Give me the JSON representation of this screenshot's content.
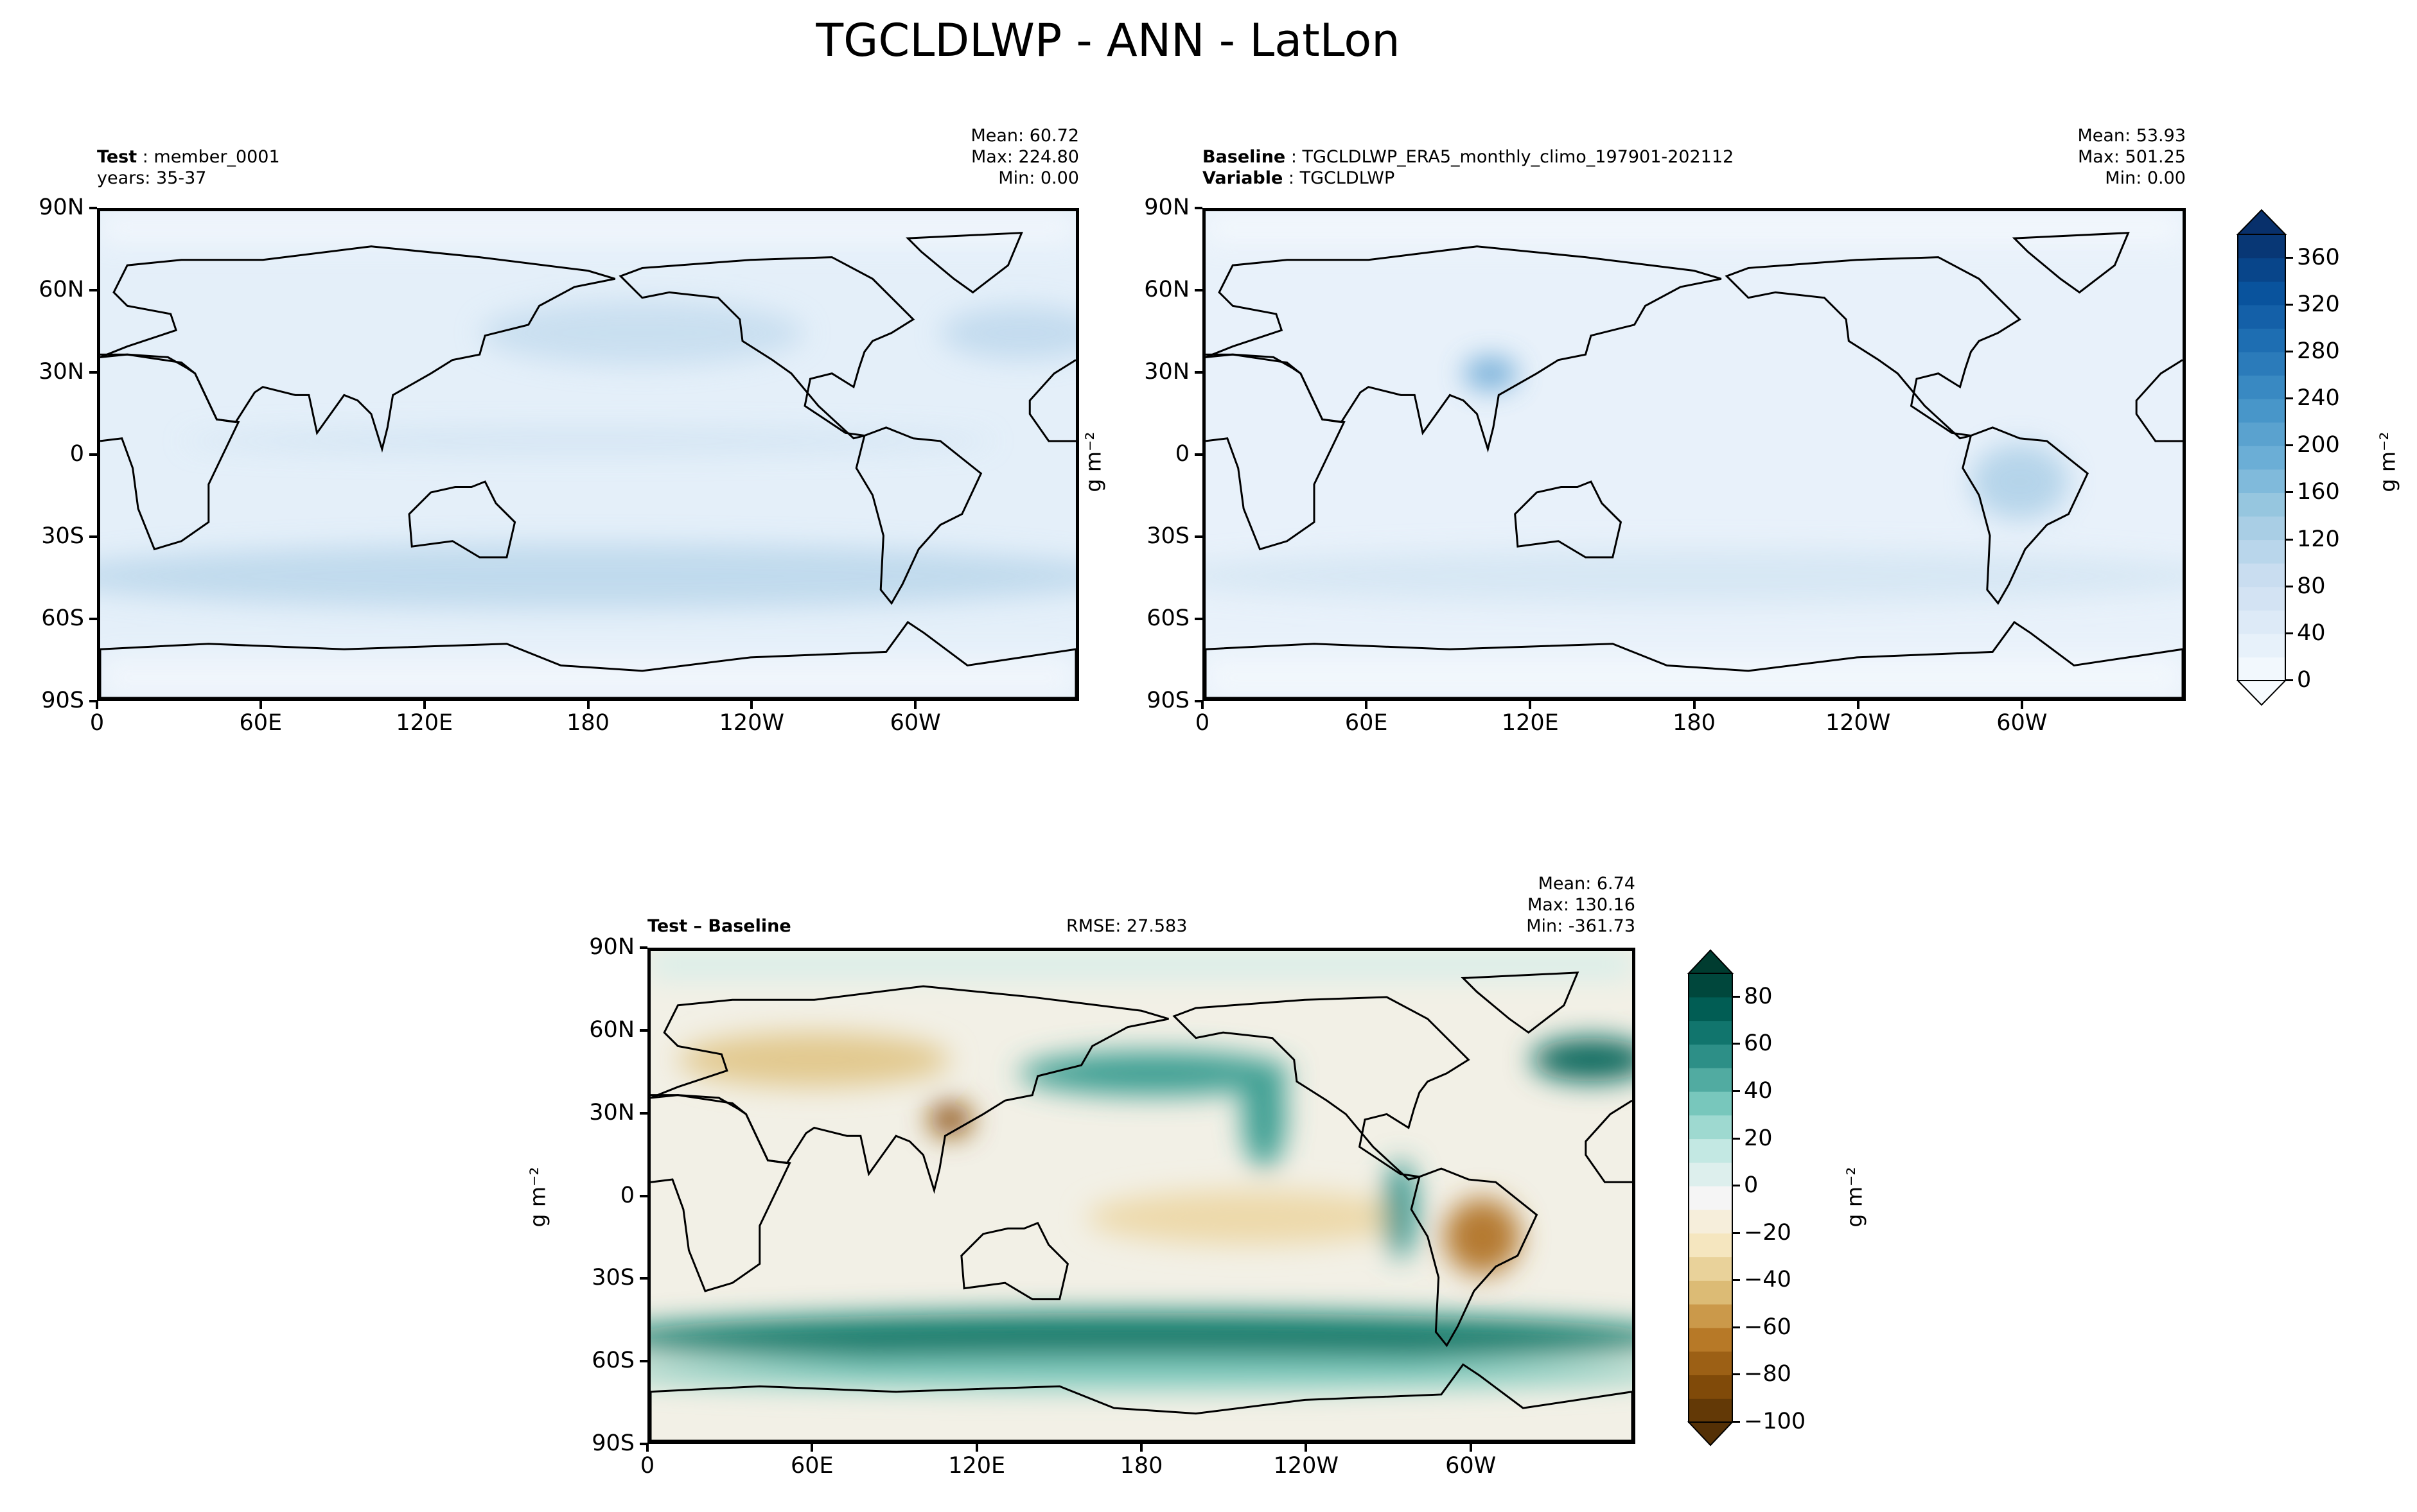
{
  "title": "TGCLDLWP - ANN - LatLon",
  "chart_data": [
    {
      "type": "heatmap",
      "panel": "test",
      "left_label_bold": "Test",
      "left_label_value": "member_0001",
      "left_line2": "years: 35-37",
      "stats": {
        "mean": "Mean: 60.72",
        "max": "Max: 224.80",
        "min": "Min:  0.00"
      },
      "xticks": [
        {
          "lon": 0,
          "label": "0"
        },
        {
          "lon": 60,
          "label": "60E"
        },
        {
          "lon": 120,
          "label": "120E"
        },
        {
          "lon": 180,
          "label": "180"
        },
        {
          "lon": 240,
          "label": "120W"
        },
        {
          "lon": 300,
          "label": "60W"
        }
      ],
      "yticks": [
        {
          "lat": 90,
          "label": "90N"
        },
        {
          "lat": 60,
          "label": "60N"
        },
        {
          "lat": 30,
          "label": "30N"
        },
        {
          "lat": 0,
          "label": "0"
        },
        {
          "lat": -30,
          "label": "30S"
        },
        {
          "lat": -60,
          "label": "60S"
        },
        {
          "lat": -90,
          "label": "90S"
        }
      ],
      "xlim": [
        0,
        360
      ],
      "ylim": [
        -90,
        90
      ]
    },
    {
      "type": "heatmap",
      "panel": "baseline",
      "left_label_bold": "Baseline",
      "left_label_value": "TGCLDLWP_ERA5_monthly_climo_197901-202112",
      "left_line2_bold": "Variable",
      "left_line2_value": "TGCLDLWP",
      "stats": {
        "mean": "Mean: 53.93",
        "max": "Max: 501.25",
        "min": "Min:  0.00"
      },
      "xticks": [
        {
          "lon": 0,
          "label": "0"
        },
        {
          "lon": 60,
          "label": "60E"
        },
        {
          "lon": 120,
          "label": "120E"
        },
        {
          "lon": 180,
          "label": "180"
        },
        {
          "lon": 240,
          "label": "120W"
        },
        {
          "lon": 300,
          "label": "60W"
        }
      ],
      "yticks": [
        {
          "lat": 90,
          "label": "90N"
        },
        {
          "lat": 60,
          "label": "60N"
        },
        {
          "lat": 30,
          "label": "30N"
        },
        {
          "lat": 0,
          "label": "0"
        },
        {
          "lat": -30,
          "label": "30S"
        },
        {
          "lat": -60,
          "label": "60S"
        },
        {
          "lat": -90,
          "label": "90S"
        }
      ],
      "unit_label": "g m⁻²",
      "xlim": [
        0,
        360
      ],
      "ylim": [
        -90,
        90
      ]
    },
    {
      "type": "heatmap",
      "panel": "difference",
      "left_label_bold": "Test – Baseline",
      "center_label": "RMSE: 27.583",
      "stats": {
        "mean": "Mean:  6.74",
        "max": "Max: 130.16",
        "min": "Min: -361.73"
      },
      "xticks": [
        {
          "lon": 0,
          "label": "0"
        },
        {
          "lon": 60,
          "label": "60E"
        },
        {
          "lon": 120,
          "label": "120E"
        },
        {
          "lon": 180,
          "label": "180"
        },
        {
          "lon": 240,
          "label": "120W"
        },
        {
          "lon": 300,
          "label": "60W"
        }
      ],
      "yticks": [
        {
          "lat": 90,
          "label": "90N"
        },
        {
          "lat": 60,
          "label": "60N"
        },
        {
          "lat": 30,
          "label": "30N"
        },
        {
          "lat": 0,
          "label": "0"
        },
        {
          "lat": -30,
          "label": "30S"
        },
        {
          "lat": -60,
          "label": "60S"
        },
        {
          "lat": -90,
          "label": "90S"
        }
      ],
      "unit_label": "g m⁻²",
      "xlim": [
        0,
        360
      ],
      "ylim": [
        -90,
        90
      ]
    }
  ],
  "colorbars": [
    {
      "name": "main",
      "range": [
        0,
        380
      ],
      "step": 20,
      "extend": "both",
      "colormap": [
        "#f7fbff",
        "#deebf7",
        "#c6dbef",
        "#9ecae1",
        "#6baed6",
        "#4292c6",
        "#2171b5",
        "#08519c",
        "#08306b"
      ],
      "ticks": [
        {
          "v": 0,
          "label": "0"
        },
        {
          "v": 40,
          "label": "40"
        },
        {
          "v": 80,
          "label": "80"
        },
        {
          "v": 120,
          "label": "120"
        },
        {
          "v": 160,
          "label": "160"
        },
        {
          "v": 200,
          "label": "200"
        },
        {
          "v": 240,
          "label": "240"
        },
        {
          "v": 280,
          "label": "280"
        },
        {
          "v": 320,
          "label": "320"
        },
        {
          "v": 360,
          "label": "360"
        }
      ],
      "unit_label": "g m⁻²"
    },
    {
      "name": "difference",
      "range": [
        -100,
        90
      ],
      "step": 10,
      "extend": "both",
      "colormap": [
        "#543005",
        "#8c510a",
        "#bf812d",
        "#dfc27d",
        "#f6e8c3",
        "#f5f5f5",
        "#c7eae5",
        "#80cdc1",
        "#35978f",
        "#01665e",
        "#003c30"
      ],
      "ticks": [
        {
          "v": -100,
          "label": "−100"
        },
        {
          "v": -80,
          "label": "−80"
        },
        {
          "v": -60,
          "label": "−60"
        },
        {
          "v": -40,
          "label": "−40"
        },
        {
          "v": -20,
          "label": "−20"
        },
        {
          "v": 0,
          "label": "0"
        },
        {
          "v": 20,
          "label": "20"
        },
        {
          "v": 40,
          "label": "40"
        },
        {
          "v": 60,
          "label": "60"
        },
        {
          "v": 80,
          "label": "80"
        }
      ],
      "unit_label": "g m⁻²"
    }
  ]
}
